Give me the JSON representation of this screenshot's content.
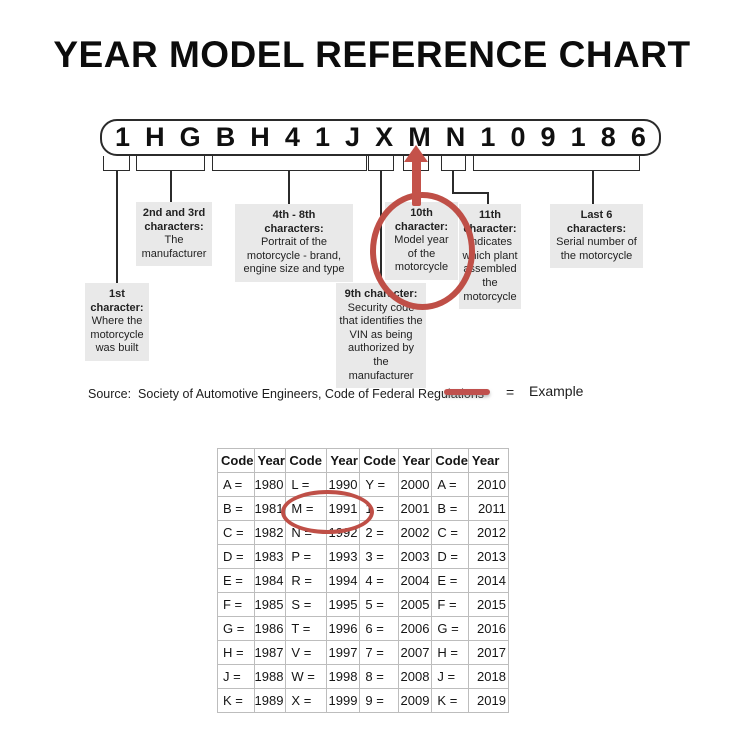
{
  "title": "YEAR MODEL REFERENCE CHART",
  "vin": {
    "characters": [
      "1",
      "H",
      "G",
      "B",
      "H",
      "4",
      "1",
      "J",
      "X",
      "M",
      "N",
      "1",
      "0",
      "9",
      "1",
      "8",
      "6"
    ]
  },
  "callouts": [
    {
      "heading": "1st\ncharacter:",
      "body": "Where the\nmotorcycle\nwas built"
    },
    {
      "heading": "2nd and 3rd\ncharacters:",
      "body": "The\nmanufacturer"
    },
    {
      "heading": "4th - 8th\ncharacters:",
      "body": "Portrait of the\nmotorcycle - brand,\nengine size and type"
    },
    {
      "heading": "9th character:",
      "body": "Security code\nthat identifies the\nVIN as being\nauthorized by the\nmanufacturer"
    },
    {
      "heading": "10th\ncharacter:",
      "body": "Model year\nof the\nmotorcycle"
    },
    {
      "heading": "11th\ncharacter:",
      "body": "Indicates\nwhich plant\nassembled\nthe\nmotorcycle"
    },
    {
      "heading": "Last 6\ncharacters:",
      "body": "Serial number of\nthe motorcycle"
    }
  ],
  "source_note": "Source:  Society of Automotive Engineers, Code of Federal Regulations",
  "legend": {
    "equals_sign": "=",
    "label": "Example"
  },
  "colors": {
    "accent_red": "#bf4f47",
    "callout_bg": "#e9e9e9"
  },
  "table": {
    "headers": [
      "Code",
      "Year",
      "Code",
      "Year",
      "Code",
      "Year",
      "Code",
      "Year"
    ],
    "rows": [
      [
        "A =",
        "1980",
        "L =",
        "1990",
        "Y =",
        "2000",
        "A =",
        "2010"
      ],
      [
        "B =",
        "1981",
        "M =",
        "1991",
        "1 =",
        "2001",
        "B =",
        "2011"
      ],
      [
        "C =",
        "1982",
        "N =",
        "1992",
        "2 =",
        "2002",
        "C =",
        "2012"
      ],
      [
        "D =",
        "1983",
        "P =",
        "1993",
        "3 =",
        "2003",
        "D =",
        "2013"
      ],
      [
        "E =",
        "1984",
        "R =",
        "1994",
        "4 =",
        "2004",
        "E =",
        "2014"
      ],
      [
        "F =",
        "1985",
        "S =",
        "1995",
        "5 =",
        "2005",
        "F =",
        "2015"
      ],
      [
        "G =",
        "1986",
        "T =",
        "1996",
        "6 =",
        "2006",
        "G =",
        "2016"
      ],
      [
        "H =",
        "1987",
        "V =",
        "1997",
        "7 =",
        "2007",
        "H =",
        "2017"
      ],
      [
        "J =",
        "1988",
        "W =",
        "1998",
        "8 =",
        "2008",
        "J =",
        "2018"
      ],
      [
        "K =",
        "1989",
        "X =",
        "1999",
        "9 =",
        "2009",
        "K =",
        "2019"
      ]
    ]
  }
}
